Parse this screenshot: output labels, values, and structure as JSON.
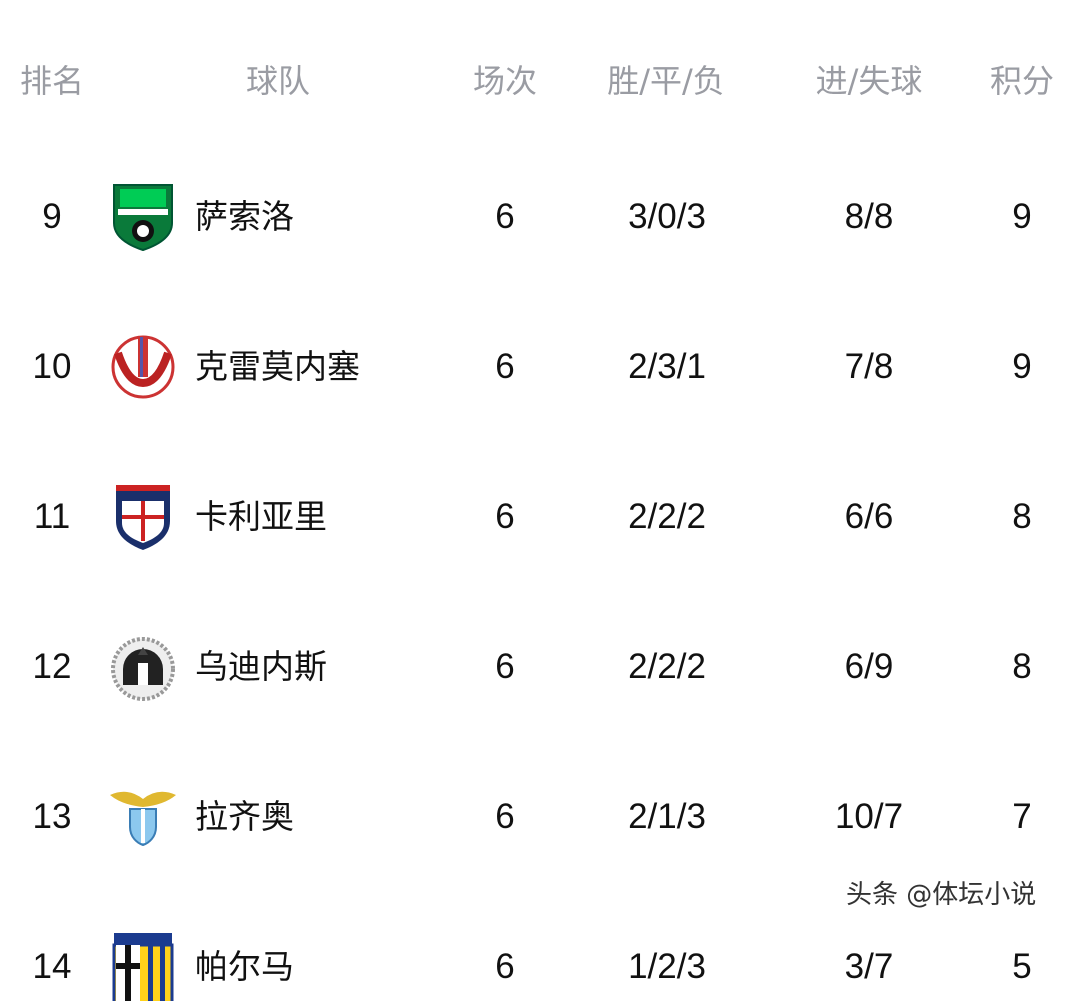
{
  "headers": {
    "rank": "排名",
    "team": "球队",
    "played": "场次",
    "wdl": "胜/平/负",
    "goals": "进/失球",
    "points": "积分"
  },
  "rows": [
    {
      "rank": "9",
      "team": "萨索洛",
      "logo": "sassuolo-logo",
      "played": "6",
      "wdl": "3/0/3",
      "goals": "8/8",
      "points": "9"
    },
    {
      "rank": "10",
      "team": "克雷莫内塞",
      "logo": "cremonese-logo",
      "played": "6",
      "wdl": "2/3/1",
      "goals": "7/8",
      "points": "9"
    },
    {
      "rank": "11",
      "team": "卡利亚里",
      "logo": "cagliari-logo",
      "played": "6",
      "wdl": "2/2/2",
      "goals": "6/6",
      "points": "8"
    },
    {
      "rank": "12",
      "team": "乌迪内斯",
      "logo": "udinese-logo",
      "played": "6",
      "wdl": "2/2/2",
      "goals": "6/9",
      "points": "8"
    },
    {
      "rank": "13",
      "team": "拉齐奥",
      "logo": "lazio-logo",
      "played": "6",
      "wdl": "2/1/3",
      "goals": "10/7",
      "points": "7"
    },
    {
      "rank": "14",
      "team": "帕尔马",
      "logo": "parma-logo",
      "played": "6",
      "wdl": "1/2/3",
      "goals": "3/7",
      "points": "5"
    }
  ],
  "watermark": "头条 @体坛小说",
  "colors": {
    "header_text": "#9a9ca3",
    "body_text": "#111111"
  }
}
